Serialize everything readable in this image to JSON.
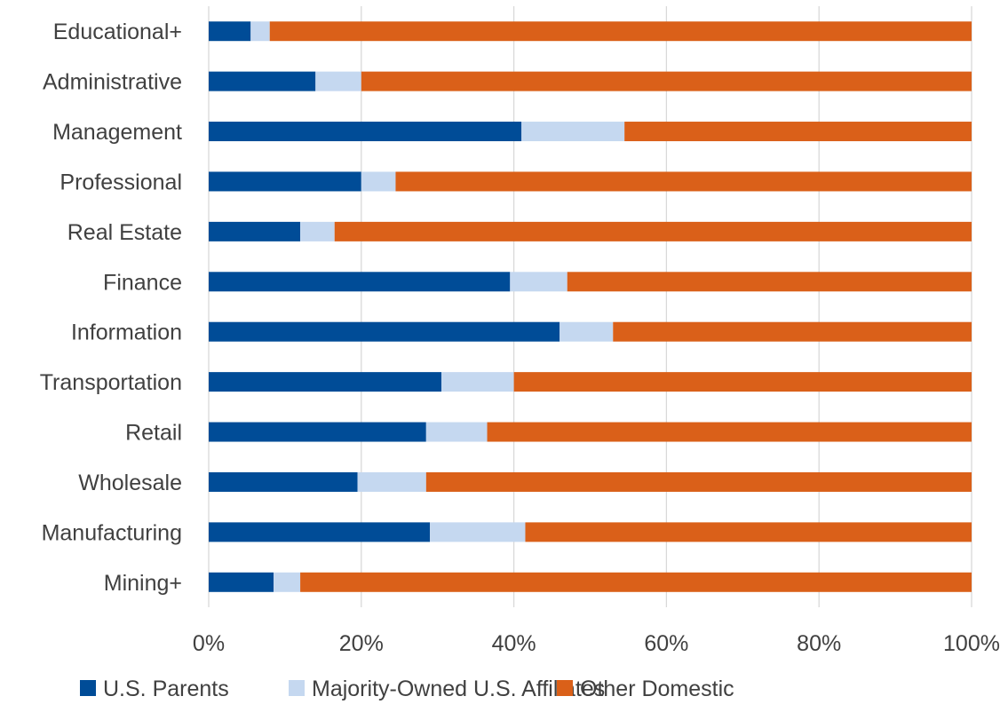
{
  "chart_data": {
    "type": "bar",
    "orientation": "horizontal",
    "stacked": "percent",
    "categories": [
      "Educational+",
      "Administrative",
      "Management",
      "Professional",
      "Real Estate",
      "Finance",
      "Information",
      "Transportation",
      "Retail",
      "Wholesale",
      "Manufacturing",
      "Mining+"
    ],
    "series": [
      {
        "name": "U.S. Parents",
        "color": "#004C97",
        "values": [
          5.5,
          14,
          41,
          20,
          12,
          39.5,
          46,
          30.5,
          28.5,
          19.5,
          29,
          8.5
        ]
      },
      {
        "name": "Majority-Owned U.S. Affiliates",
        "color": "#C5D8F0",
        "values": [
          2.5,
          6,
          13.5,
          4.5,
          4.5,
          7.5,
          7,
          9.5,
          8,
          9,
          12.5,
          3.5
        ]
      },
      {
        "name": "Other Domestic",
        "color": "#DA6019",
        "values": [
          92,
          80,
          45.5,
          75.5,
          83.5,
          53,
          47,
          60,
          63.5,
          71.5,
          58.5,
          88
        ]
      }
    ],
    "xlim": [
      0,
      100
    ],
    "xticks": [
      "0%",
      "20%",
      "40%",
      "60%",
      "80%",
      "100%"
    ],
    "grid": "vertical",
    "legend_position": "bottom",
    "title": "",
    "xlabel": "",
    "ylabel": ""
  }
}
